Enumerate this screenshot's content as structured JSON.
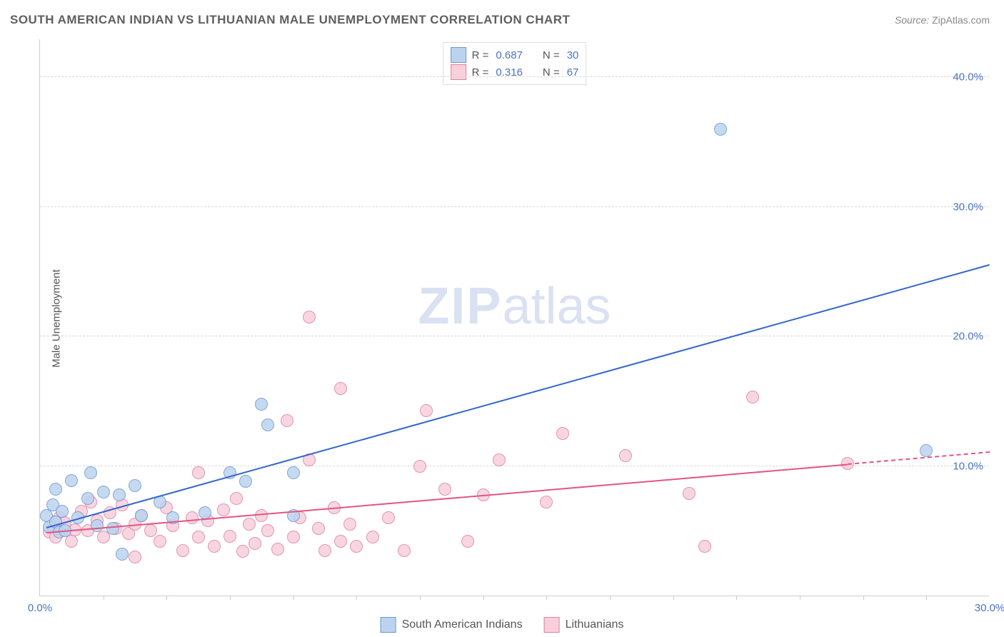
{
  "title": "SOUTH AMERICAN INDIAN VS LITHUANIAN MALE UNEMPLOYMENT CORRELATION CHART",
  "source_label": "Source:",
  "source_value": "ZipAtlas.com",
  "ylabel": "Male Unemployment",
  "watermark_a": "ZIP",
  "watermark_b": "atlas",
  "chart": {
    "type": "scatter",
    "xlim": [
      0,
      30
    ],
    "ylim": [
      0,
      43
    ],
    "y_gridlines": [
      10,
      20,
      30,
      40
    ],
    "y_tick_labels": [
      "10.0%",
      "20.0%",
      "30.0%",
      "40.0%"
    ],
    "x_ticks_minor": [
      2,
      4,
      6,
      8,
      10,
      12,
      14,
      16,
      18,
      20,
      22,
      24,
      26,
      28
    ],
    "x_tick_labels": [
      {
        "v": 0,
        "label": "0.0%"
      },
      {
        "v": 30,
        "label": "30.0%"
      }
    ],
    "background_color": "#ffffff",
    "grid_color": "#d8d8d8",
    "axis_color": "#cccccc",
    "label_color": "#4a72c4",
    "title_color": "#5f5f5f",
    "title_fontsize": 17,
    "label_fontsize": 15,
    "marker_radius": 9,
    "marker_border_width": 1.2,
    "series": [
      {
        "name": "South American Indians",
        "fill": "#bcd3ef",
        "stroke": "#6f97d1",
        "line_color": "#3366cc",
        "line_width": 2,
        "R": "0.687",
        "N": "30",
        "trend": {
          "x1": 0.2,
          "y1": 5.2,
          "x2": 30,
          "y2": 25.5,
          "dash": false,
          "extrapolate_from_x": null
        },
        "points": [
          [
            0.2,
            6.2
          ],
          [
            0.3,
            5.3
          ],
          [
            0.4,
            7.0
          ],
          [
            0.5,
            5.7
          ],
          [
            0.5,
            8.2
          ],
          [
            0.6,
            4.9
          ],
          [
            0.7,
            6.5
          ],
          [
            0.8,
            5.0
          ],
          [
            1.0,
            8.9
          ],
          [
            1.2,
            6.0
          ],
          [
            1.5,
            7.5
          ],
          [
            1.6,
            9.5
          ],
          [
            1.8,
            5.4
          ],
          [
            2.0,
            8.0
          ],
          [
            2.3,
            5.2
          ],
          [
            2.5,
            7.8
          ],
          [
            2.6,
            3.2
          ],
          [
            3.0,
            8.5
          ],
          [
            3.2,
            6.2
          ],
          [
            3.8,
            7.2
          ],
          [
            4.2,
            6.0
          ],
          [
            5.2,
            6.4
          ],
          [
            6.0,
            9.5
          ],
          [
            6.5,
            8.8
          ],
          [
            7.0,
            14.8
          ],
          [
            7.2,
            13.2
          ],
          [
            8.0,
            6.2
          ],
          [
            8.0,
            9.5
          ],
          [
            21.5,
            36.0
          ],
          [
            28.0,
            11.2
          ]
        ]
      },
      {
        "name": "Lithuanians",
        "fill": "#f7d0dc",
        "stroke": "#e17fa2",
        "line_color": "#e2557f",
        "line_width": 2,
        "R": "0.316",
        "N": "67",
        "trend": {
          "x1": 0.2,
          "y1": 4.8,
          "x2": 30,
          "y2": 11.0,
          "dash": false,
          "extrapolate_from_x": 25.5
        },
        "points": [
          [
            0.3,
            4.9
          ],
          [
            0.4,
            5.4
          ],
          [
            0.5,
            4.5
          ],
          [
            0.6,
            6.0
          ],
          [
            0.7,
            5.0
          ],
          [
            0.8,
            5.6
          ],
          [
            1.0,
            4.2
          ],
          [
            1.1,
            5.1
          ],
          [
            1.3,
            6.5
          ],
          [
            1.5,
            5.0
          ],
          [
            1.6,
            7.2
          ],
          [
            1.8,
            5.8
          ],
          [
            2.0,
            4.5
          ],
          [
            2.2,
            6.4
          ],
          [
            2.4,
            5.2
          ],
          [
            2.6,
            7.0
          ],
          [
            2.8,
            4.8
          ],
          [
            3.0,
            5.5
          ],
          [
            3.0,
            3.0
          ],
          [
            3.2,
            6.2
          ],
          [
            3.5,
            5.0
          ],
          [
            3.8,
            4.2
          ],
          [
            4.0,
            6.8
          ],
          [
            4.2,
            5.4
          ],
          [
            4.5,
            3.5
          ],
          [
            4.8,
            6.0
          ],
          [
            5.0,
            4.5
          ],
          [
            5.0,
            9.5
          ],
          [
            5.3,
            5.8
          ],
          [
            5.5,
            3.8
          ],
          [
            5.8,
            6.6
          ],
          [
            6.0,
            4.6
          ],
          [
            6.2,
            7.5
          ],
          [
            6.4,
            3.4
          ],
          [
            6.6,
            5.5
          ],
          [
            6.8,
            4.0
          ],
          [
            7.0,
            6.2
          ],
          [
            7.2,
            5.0
          ],
          [
            7.5,
            3.6
          ],
          [
            7.8,
            13.5
          ],
          [
            8.0,
            4.5
          ],
          [
            8.2,
            6.0
          ],
          [
            8.5,
            10.5
          ],
          [
            8.5,
            21.5
          ],
          [
            8.8,
            5.2
          ],
          [
            9.0,
            3.5
          ],
          [
            9.3,
            6.8
          ],
          [
            9.5,
            16.0
          ],
          [
            9.5,
            4.2
          ],
          [
            9.8,
            5.5
          ],
          [
            10.0,
            3.8
          ],
          [
            10.5,
            4.5
          ],
          [
            11.0,
            6.0
          ],
          [
            11.5,
            3.5
          ],
          [
            12.0,
            10.0
          ],
          [
            12.2,
            14.3
          ],
          [
            12.8,
            8.2
          ],
          [
            13.5,
            4.2
          ],
          [
            14.0,
            7.8
          ],
          [
            14.5,
            10.5
          ],
          [
            16.0,
            7.2
          ],
          [
            16.5,
            12.5
          ],
          [
            18.5,
            10.8
          ],
          [
            20.5,
            7.9
          ],
          [
            21.0,
            3.8
          ],
          [
            22.5,
            15.3
          ],
          [
            25.5,
            10.2
          ]
        ]
      }
    ],
    "legend_bottom": [
      {
        "label": "South American Indians",
        "fill": "#bcd3ef",
        "stroke": "#6f97d1"
      },
      {
        "label": "Lithuanians",
        "fill": "#f7d0dc",
        "stroke": "#e17fa2"
      }
    ],
    "legend_top_prefix_R": "R  =",
    "legend_top_prefix_N": "N  ="
  }
}
